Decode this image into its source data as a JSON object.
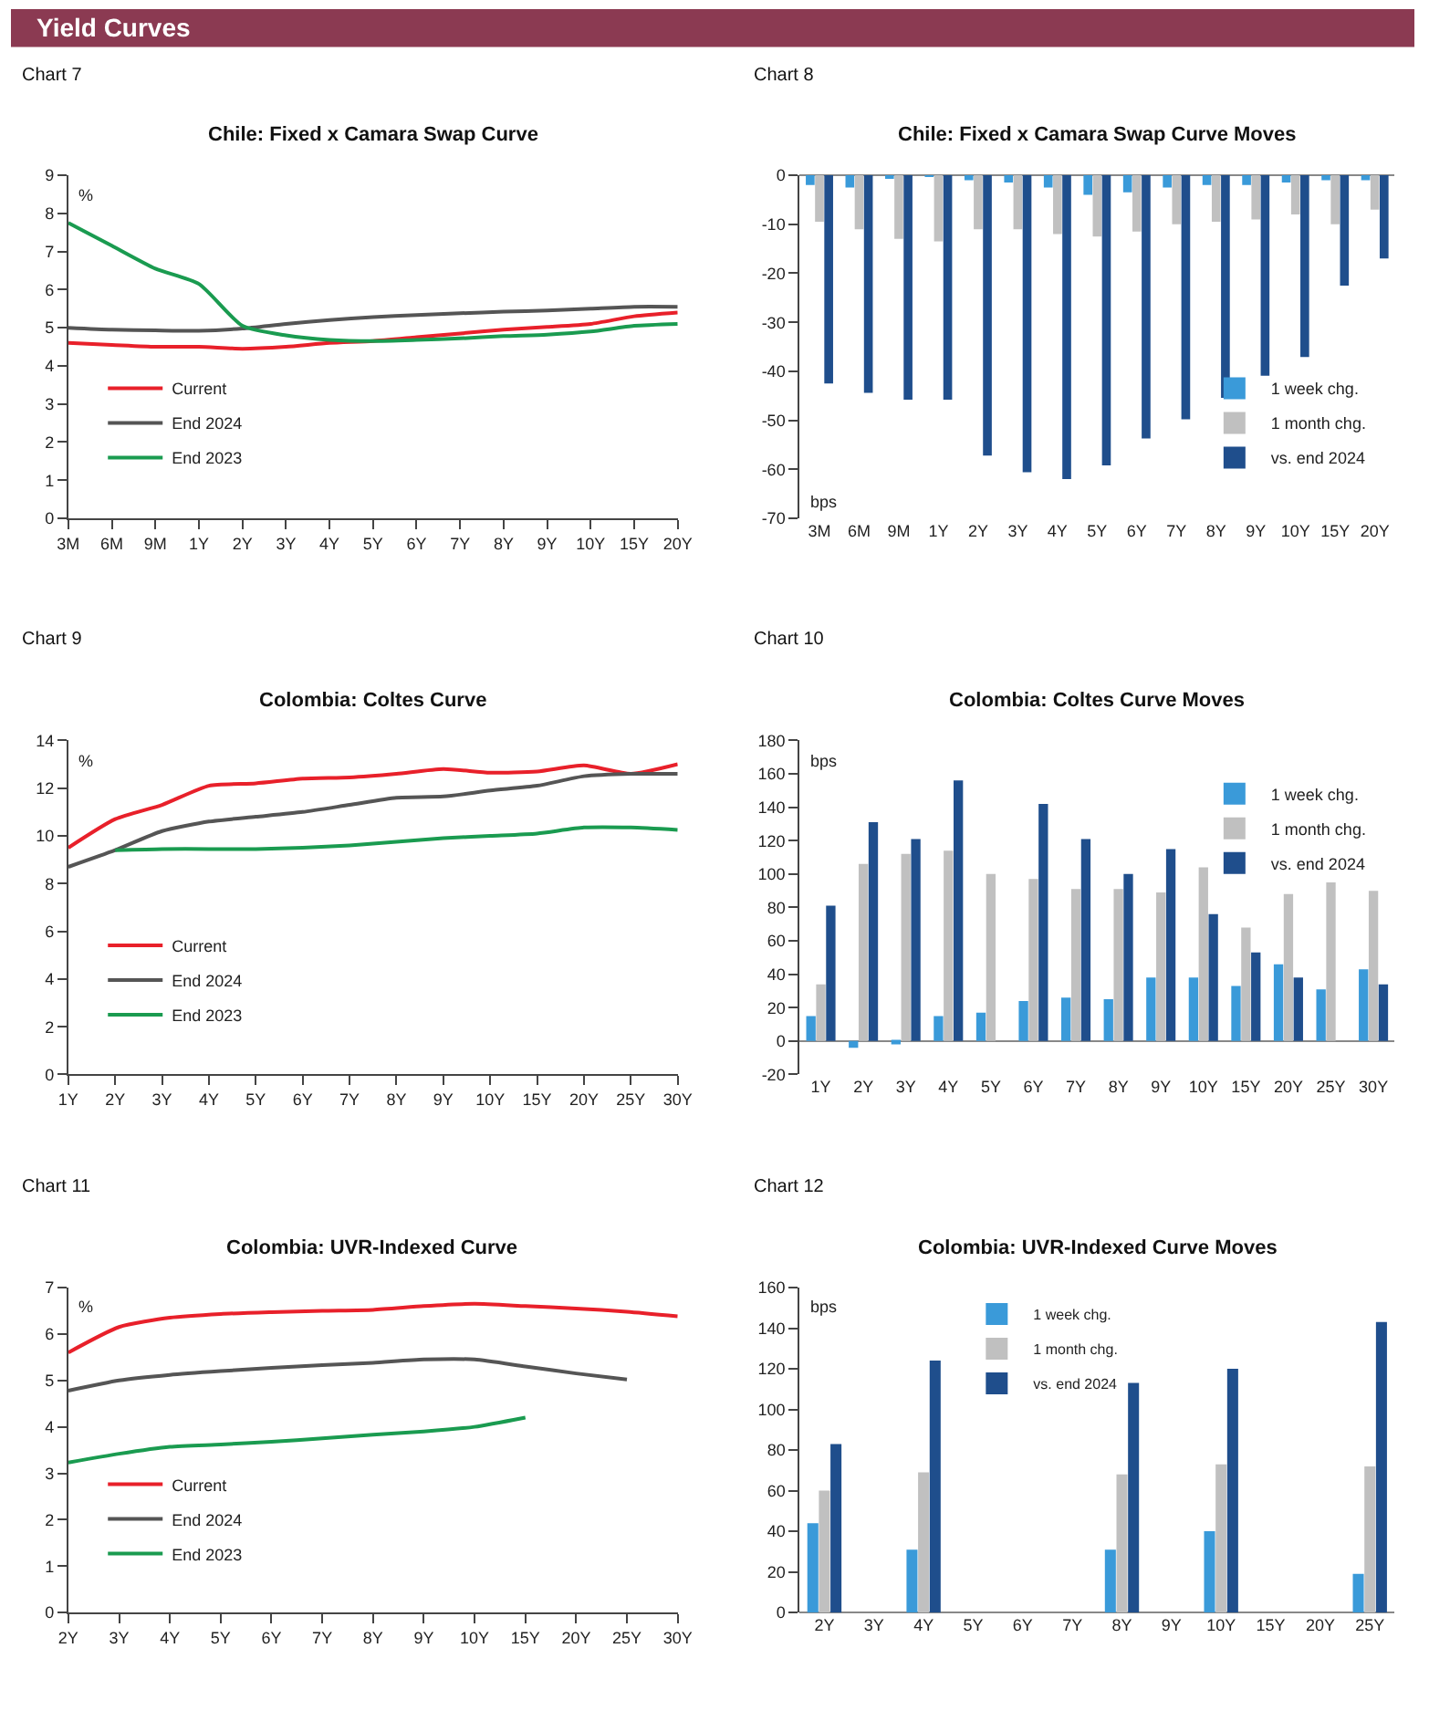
{
  "chart_data": [
    {
      "type": "other",
      "title": "Yield Curves",
      "color": "#8b3a52"
    },
    {
      "type": "line",
      "title": "Chile: Fixed x Camara Swap Curve",
      "ylabel": "%",
      "annotations": [
        "Chart 7"
      ],
      "legend": "bottom left",
      "categories": [
        "3M",
        "6M",
        "9M",
        "1Y",
        "2Y",
        "3Y",
        "4Y",
        "5Y",
        "6Y",
        "7Y",
        "8Y",
        "9Y",
        "10Y",
        "15Y",
        "20Y"
      ],
      "ylim": [
        0,
        9
      ],
      "yticks": [
        0,
        1,
        2,
        3,
        4,
        5,
        6,
        7,
        8,
        9
      ],
      "series": [
        {
          "name": "Current",
          "color": "#e8202a",
          "values": [
            4.6,
            4.55,
            4.5,
            4.5,
            4.45,
            4.5,
            4.6,
            4.65,
            4.75,
            4.85,
            4.95,
            5.02,
            5.1,
            5.3,
            5.4
          ]
        },
        {
          "name": "End 2024",
          "color": "#555555",
          "values": [
            5.0,
            4.95,
            4.93,
            4.92,
            4.98,
            5.1,
            5.2,
            5.28,
            5.33,
            5.38,
            5.42,
            5.45,
            5.5,
            5.55,
            5.55
          ]
        },
        {
          "name": "End 2023",
          "color": "#1a9b50",
          "values": [
            7.75,
            7.15,
            6.55,
            6.15,
            5.05,
            4.8,
            4.68,
            4.65,
            4.68,
            4.72,
            4.78,
            4.82,
            4.9,
            5.05,
            5.1
          ]
        }
      ]
    },
    {
      "type": "bar",
      "title": "Chile: Fixed x Camara Swap Curve Moves",
      "ylabel": "bps",
      "annotations": [
        "Chart 8"
      ],
      "legend": "bottom right",
      "categories": [
        "3M",
        "6M",
        "9M",
        "1Y",
        "2Y",
        "3Y",
        "4Y",
        "5Y",
        "6Y",
        "7Y",
        "8Y",
        "9Y",
        "10Y",
        "15Y",
        "20Y"
      ],
      "ylim": [
        -70,
        0
      ],
      "yticks": [
        -70,
        -60,
        -50,
        -40,
        -30,
        -20,
        -10,
        0
      ],
      "series": [
        {
          "name": "1 week chg.",
          "color": "#3a9ad9",
          "values": [
            -2,
            -2.5,
            -0.5,
            -0.3,
            -1,
            -1.5,
            -2.5,
            -4,
            -3.5,
            -2.5,
            -2,
            -2,
            -1.5,
            -1,
            -1
          ]
        },
        {
          "name": "1 month chg.",
          "color": "#c0c0c0",
          "values": [
            -9.5,
            -11,
            -13,
            -13.5,
            -11,
            -11,
            -12,
            -12.5,
            -11.5,
            -10,
            -9.5,
            -9,
            -8,
            -10,
            -7
          ]
        },
        {
          "name": "vs. end 2024",
          "color": "#1f4e8c",
          "values": [
            -42.5,
            -44.4,
            -45.8,
            -45.8,
            -57.2,
            -60.6,
            -62,
            -59.2,
            -53.7,
            -49.8,
            -45.4,
            -40.9,
            -37.1,
            -22.5,
            -17
          ]
        }
      ]
    },
    {
      "type": "line",
      "title": "Colombia: Coltes Curve",
      "ylabel": "%",
      "annotations": [
        "Chart 9"
      ],
      "legend": "bottom left",
      "categories": [
        "1Y",
        "2Y",
        "3Y",
        "4Y",
        "5Y",
        "6Y",
        "7Y",
        "8Y",
        "9Y",
        "10Y",
        "15Y",
        "20Y",
        "25Y",
        "30Y"
      ],
      "ylim": [
        0,
        14
      ],
      "yticks": [
        0,
        2,
        4,
        6,
        8,
        10,
        12,
        14
      ],
      "series": [
        {
          "name": "Current",
          "color": "#e8202a",
          "values": [
            9.5,
            10.7,
            11.3,
            12.1,
            12.2,
            12.4,
            12.45,
            12.6,
            12.8,
            12.65,
            12.7,
            12.95,
            12.6,
            13.0
          ]
        },
        {
          "name": "End 2024",
          "color": "#555555",
          "values": [
            8.7,
            9.4,
            10.2,
            10.6,
            10.8,
            11.0,
            11.3,
            11.6,
            11.65,
            11.9,
            12.1,
            12.5,
            12.6,
            12.6
          ]
        },
        {
          "name": "End 2023",
          "color": "#1a9b50",
          "values": [
            null,
            9.4,
            9.45,
            9.45,
            9.45,
            9.5,
            9.6,
            9.75,
            9.9,
            10.0,
            10.1,
            10.35,
            10.35,
            10.25
          ]
        }
      ]
    },
    {
      "type": "bar",
      "title": "Colombia: Coltes Curve Moves",
      "ylabel": "bps",
      "annotations": [
        "Chart 10"
      ],
      "legend": "top right",
      "categories": [
        "1Y",
        "2Y",
        "3Y",
        "4Y",
        "5Y",
        "6Y",
        "7Y",
        "8Y",
        "9Y",
        "10Y",
        "15Y",
        "20Y",
        "25Y",
        "30Y"
      ],
      "ylim": [
        -20,
        180
      ],
      "yticks": [
        -20,
        0,
        20,
        40,
        60,
        80,
        100,
        120,
        140,
        160,
        180
      ],
      "series": [
        {
          "name": "1 week chg.",
          "color": "#3a9ad9",
          "values": [
            15,
            -4,
            -2,
            15,
            17,
            24,
            26,
            25,
            38,
            38,
            33,
            46,
            31,
            43
          ]
        },
        {
          "name": "1 month chg.",
          "color": "#c0c0c0",
          "values": [
            34,
            106,
            112,
            114,
            100,
            97,
            91,
            91,
            89,
            104,
            68,
            88,
            95,
            90
          ]
        },
        {
          "name": "vs. end 2024",
          "color": "#1f4e8c",
          "values": [
            81,
            131,
            121,
            156,
            null,
            142,
            121,
            100,
            115,
            76,
            53,
            38,
            null,
            34
          ]
        }
      ]
    },
    {
      "type": "line",
      "title": "Colombia: UVR-Indexed Curve",
      "ylabel": "%",
      "annotations": [
        "Chart 11"
      ],
      "legend": "bottom left",
      "categories": [
        "2Y",
        "3Y",
        "4Y",
        "5Y",
        "6Y",
        "7Y",
        "8Y",
        "9Y",
        "10Y",
        "15Y",
        "20Y",
        "25Y",
        "30Y"
      ],
      "ylim": [
        0,
        7
      ],
      "yticks": [
        0,
        1,
        2,
        3,
        4,
        5,
        6,
        7
      ],
      "series": [
        {
          "name": "Current",
          "color": "#e8202a",
          "values": [
            5.6,
            6.15,
            6.35,
            6.43,
            6.47,
            6.5,
            6.52,
            6.6,
            6.65,
            6.6,
            6.55,
            6.48,
            6.38
          ]
        },
        {
          "name": "End 2024",
          "color": "#555555",
          "values": [
            4.78,
            5.0,
            5.12,
            5.2,
            5.27,
            5.33,
            5.38,
            5.45,
            5.45,
            5.3,
            5.15,
            5.02,
            null
          ]
        },
        {
          "name": "End 2023",
          "color": "#1a9b50",
          "values": [
            3.23,
            3.42,
            3.57,
            3.62,
            3.68,
            3.75,
            3.83,
            3.9,
            4.0,
            4.2,
            null,
            null,
            null
          ]
        }
      ]
    },
    {
      "type": "bar",
      "title": "Colombia: UVR-Indexed Curve Moves",
      "ylabel": "bps",
      "annotations": [
        "Chart 12"
      ],
      "legend": "top",
      "categories": [
        "2Y",
        "3Y",
        "4Y",
        "5Y",
        "6Y",
        "7Y",
        "8Y",
        "9Y",
        "10Y",
        "15Y",
        "20Y",
        "25Y"
      ],
      "ylim": [
        0,
        160
      ],
      "yticks": [
        0,
        20,
        40,
        60,
        80,
        100,
        120,
        140,
        160
      ],
      "series": [
        {
          "name": "1 week chg.",
          "color": "#3a9ad9",
          "values": [
            44,
            null,
            31,
            null,
            null,
            null,
            31,
            null,
            40,
            null,
            null,
            19
          ]
        },
        {
          "name": "1 month chg.",
          "color": "#c0c0c0",
          "values": [
            60,
            null,
            69,
            null,
            null,
            null,
            68,
            null,
            73,
            null,
            null,
            72
          ]
        },
        {
          "name": "vs. end 2024",
          "color": "#1f4e8c",
          "values": [
            83,
            null,
            124,
            null,
            null,
            null,
            113,
            null,
            120,
            null,
            null,
            143
          ]
        }
      ]
    }
  ]
}
